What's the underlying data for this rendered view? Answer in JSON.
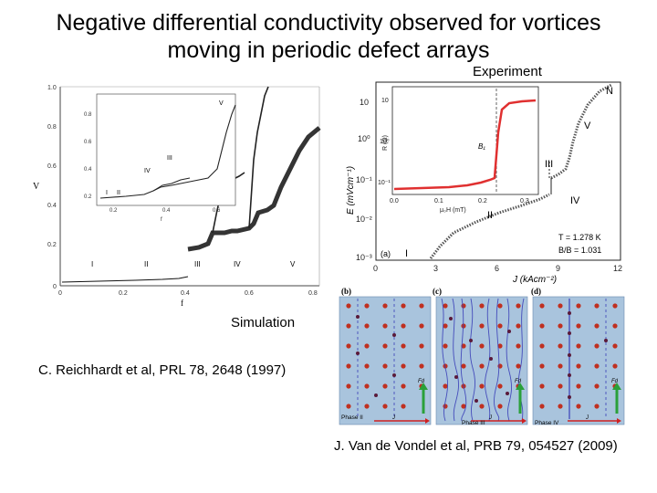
{
  "title": {
    "line1": "Negative differential conductivity observed for vortices",
    "line2": "moving in periodic defect arrays"
  },
  "labels": {
    "experiment": "Experiment",
    "simulation": "Simulation"
  },
  "citations": {
    "reichhardt": "C. Reichhardt et al, PRL 78, 2648 (1997)",
    "vandevondel": "J. Van de Vondel et al, PRB 79, 054527 (2009)"
  },
  "sim_figure": {
    "ylabel": "V",
    "xlabel": "f",
    "y_ticks": [
      "1.0",
      "0.8",
      "0.6",
      "0.4",
      "0.2",
      "0"
    ],
    "x_ticks": [
      "0",
      "0.2",
      "0.4",
      "0.6",
      "0.8"
    ],
    "phases": [
      "I",
      "II",
      "III",
      "IV",
      "V"
    ],
    "inset": {
      "y_ticks": [
        "0.8",
        "0.6",
        "0.4",
        "0.2"
      ],
      "x_ticks": [
        "0.2",
        "0.4",
        "0.6"
      ],
      "phases": [
        "I",
        "II",
        "III",
        "IV",
        "V"
      ],
      "xlabel": "f"
    }
  },
  "exp_figure": {
    "ylabel": "E (mVcm⁻¹)",
    "xlabel": "J (kAcm⁻²)",
    "y_ticks": [
      "10",
      "10⁰",
      "10⁻¹",
      "10⁻²",
      "10⁻³"
    ],
    "x_ticks": [
      "0",
      "3",
      "6",
      "9",
      "12"
    ],
    "panel": "(a)",
    "phases": [
      "N",
      "V",
      "III",
      "IV",
      "II",
      "I"
    ],
    "annot_T": "T = 1.278 K",
    "annot_B": "B/B  = 1.031",
    "inset": {
      "ylabel": "R (Ω)",
      "xlabel": "μ₀H (mT)",
      "y_ticks": [
        "10",
        "10⁰",
        "10⁻¹"
      ],
      "x_ticks": [
        "0.0",
        "0.1",
        "0.2",
        "0.3"
      ],
      "marker": "B₁"
    }
  },
  "panels": [
    {
      "id": "(b)",
      "phase": "Phase II",
      "force": "Fd",
      "current": "J"
    },
    {
      "id": "(c)",
      "phase": "Phase III",
      "force": "Fd",
      "current": "J"
    },
    {
      "id": "(d)",
      "phase": "Phase IV",
      "force": "Fd",
      "current": "J"
    }
  ],
  "colors": {
    "inset_curve": "#e03030",
    "panel_bg": "#a9c4dd",
    "pin": "#c03020",
    "trail": "#3a3fb8",
    "force_arrow": "#2aa03a",
    "current_arrow": "#d02020"
  }
}
